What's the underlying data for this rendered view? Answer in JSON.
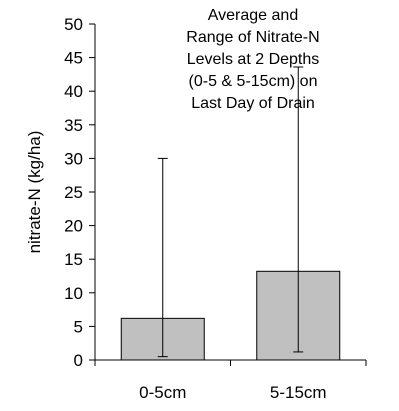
{
  "chart_data": {
    "type": "bar",
    "title_lines": [
      "Average and",
      "Range of Nitrate-N",
      "Levels at 2 Depths",
      "(0-5 & 5-15cm) on",
      "Last Day of Drain"
    ],
    "xlabel": "",
    "ylabel": "nitrate-N (kg/ha)",
    "categories": [
      "0-5cm",
      "5-15cm"
    ],
    "values": [
      6.2,
      13.2
    ],
    "range_min": [
      0.5,
      1.2
    ],
    "range_max": [
      30,
      43.6
    ],
    "ylim": [
      0,
      50
    ],
    "yticks": [
      0,
      5,
      10,
      15,
      20,
      25,
      30,
      35,
      40,
      45,
      50
    ],
    "bar_color": "#c0c0c0",
    "grid": false,
    "legend": "none"
  }
}
